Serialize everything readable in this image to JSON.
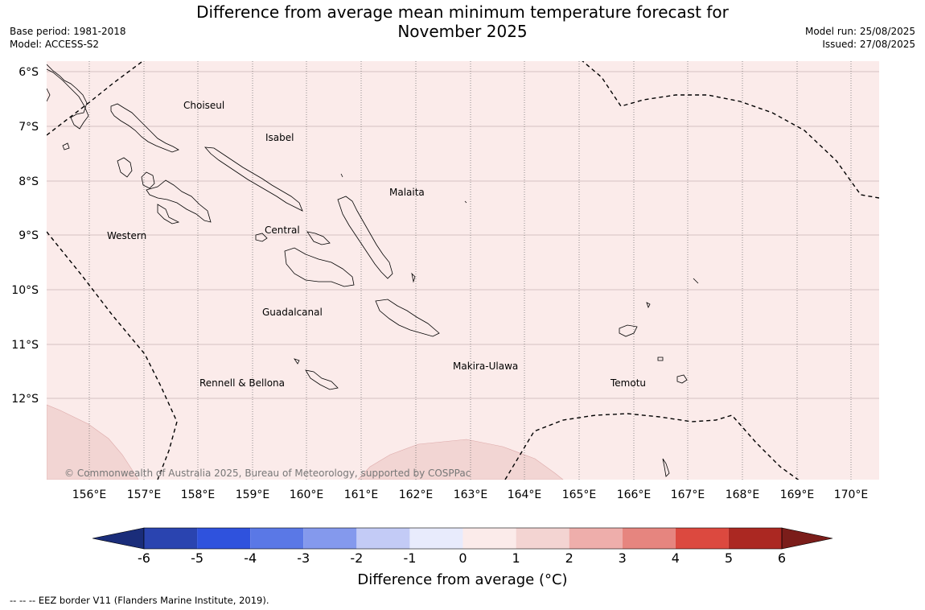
{
  "header": {
    "title_line1": "Difference from average mean minimum temperature forecast for",
    "title_line2": "November 2025",
    "base_period": "Base period: 1981-2018",
    "model": "Model: ACCESS-S2",
    "model_run": "Model run: 25/08/2025",
    "issued": "Issued: 27/08/2025"
  },
  "map": {
    "lat_labels": [
      "6°S",
      "7°S",
      "8°S",
      "9°S",
      "10°S",
      "11°S",
      "12°S"
    ],
    "lon_labels": [
      "156°E",
      "157°E",
      "158°E",
      "159°E",
      "160°E",
      "161°E",
      "162°E",
      "163°E",
      "164°E",
      "165°E",
      "166°E",
      "167°E",
      "168°E",
      "169°E",
      "170°E"
    ],
    "background_color": "#fbebea",
    "anomaly_patch_color": "#f2d5d3",
    "places": [
      {
        "name": "Choiseul"
      },
      {
        "name": "Isabel"
      },
      {
        "name": "Malaita"
      },
      {
        "name": "Western"
      },
      {
        "name": "Central"
      },
      {
        "name": "Guadalcanal"
      },
      {
        "name": "Makira-Ulawa"
      },
      {
        "name": "Rennell & Bellona"
      },
      {
        "name": "Temotu"
      }
    ],
    "copyright": "© Commonwealth of Australia 2025, Bureau of Meteorology, supported by COSPPac"
  },
  "colorbar": {
    "ticks": [
      "-6",
      "-5",
      "-4",
      "-3",
      "-2",
      "-1",
      "0",
      "1",
      "2",
      "3",
      "4",
      "5",
      "6"
    ],
    "colors": [
      "#1a2d7a",
      "#2a44b0",
      "#2f52dd",
      "#5a78e6",
      "#8499ed",
      "#c3cbf6",
      "#e8ebfc",
      "#fbebea",
      "#f3d4d2",
      "#eeaeab",
      "#e6857f",
      "#dc493f",
      "#ab2822",
      "#7b1d1a"
    ],
    "label": "Difference from average (°C)"
  },
  "footnote": "--  --  -- EEZ border V11 (Flanders Marine Institute, 2019)."
}
